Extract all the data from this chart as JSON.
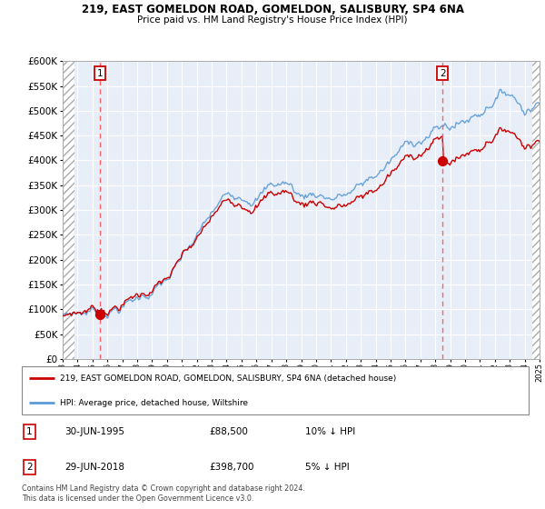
{
  "title1": "219, EAST GOMELDON ROAD, GOMELDON, SALISBURY, SP4 6NA",
  "title2": "Price paid vs. HM Land Registry's House Price Index (HPI)",
  "legend_line1": "219, EAST GOMELDON ROAD, GOMELDON, SALISBURY, SP4 6NA (detached house)",
  "legend_line2": "HPI: Average price, detached house, Wiltshire",
  "sale1_date": "30-JUN-1995",
  "sale1_price": 88500,
  "sale1_label": "10% ↓ HPI",
  "sale2_date": "29-JUN-2018",
  "sale2_price": 398700,
  "sale2_label": "5% ↓ HPI",
  "footer": "Contains HM Land Registry data © Crown copyright and database right 2024.\nThis data is licensed under the Open Government Licence v3.0.",
  "hpi_color": "#5b9bd5",
  "price_color": "#cc0000",
  "marker_color": "#cc0000",
  "sale_vline_color": "#ff5555",
  "ylim": [
    0,
    600000
  ],
  "yticks": [
    0,
    50000,
    100000,
    150000,
    200000,
    250000,
    300000,
    350000,
    400000,
    450000,
    500000,
    550000,
    600000
  ],
  "plot_bg": "#e8eef8",
  "grid_color": "#ffffff",
  "sale1_ratio": 0.9,
  "sale2_ratio": 0.95
}
